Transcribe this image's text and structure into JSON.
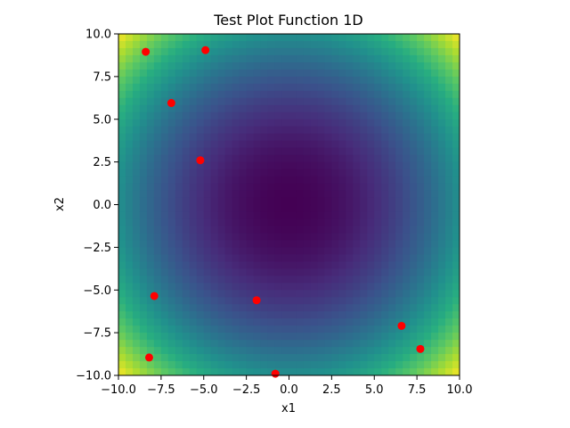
{
  "chart_data": {
    "type": "heatmap",
    "title": "Test Plot Function 1D",
    "xlabel": "x1",
    "ylabel": "x2",
    "xlim": [
      -10,
      10
    ],
    "ylim": [
      -10,
      10
    ],
    "grid": false,
    "surface": {
      "description_function": "x1^2 + x2^2",
      "colormap": "viridis",
      "value_range": [
        0,
        200
      ]
    },
    "x_ticks": [
      -10.0,
      -7.5,
      -5.0,
      -2.5,
      0.0,
      2.5,
      5.0,
      7.5,
      10.0
    ],
    "x_tick_labels": [
      "−10.0",
      "−7.5",
      "−5.0",
      "−2.5",
      "0.0",
      "2.5",
      "5.0",
      "7.5",
      "10.0"
    ],
    "y_ticks": [
      10.0,
      7.5,
      5.0,
      2.5,
      0.0,
      -2.5,
      -5.0,
      -7.5,
      -10.0
    ],
    "y_tick_labels": [
      "10.0",
      "7.5",
      "5.0",
      "2.5",
      "0.0",
      "−2.5",
      "−5.0",
      "−7.5",
      "−10.0"
    ],
    "points_color": "#ff0000",
    "points": [
      {
        "x": -8.4,
        "y": 8.95
      },
      {
        "x": -4.9,
        "y": 9.05
      },
      {
        "x": -6.9,
        "y": 5.95
      },
      {
        "x": -5.2,
        "y": 2.6
      },
      {
        "x": -7.9,
        "y": -5.35
      },
      {
        "x": -1.9,
        "y": -5.6
      },
      {
        "x": -8.2,
        "y": -8.95
      },
      {
        "x": -0.8,
        "y": -9.9
      },
      {
        "x": 6.6,
        "y": -7.1
      },
      {
        "x": 7.7,
        "y": -8.45
      }
    ]
  }
}
